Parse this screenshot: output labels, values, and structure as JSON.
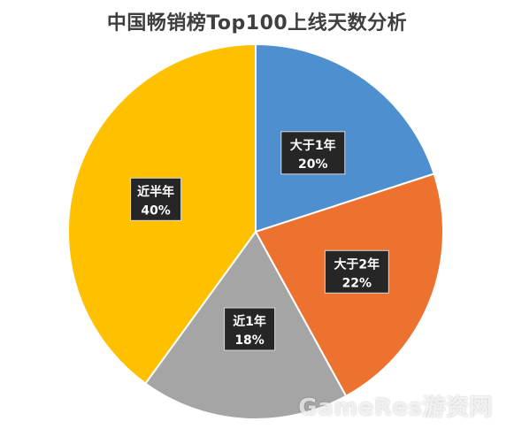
{
  "chart_data": {
    "type": "pie",
    "title": "中国畅销榜Top100上线天数分析",
    "start_angle_deg": 0,
    "direction": "clockwise",
    "slices": [
      {
        "label": "大于1年",
        "value": 20,
        "value_label": "20%",
        "color": "#4e8fd0"
      },
      {
        "label": "大于2年",
        "value": 22,
        "value_label": "22%",
        "color": "#ed7230"
      },
      {
        "label": "近1年",
        "value": 18,
        "value_label": "18%",
        "color": "#a5a5a5"
      },
      {
        "label": "近半年",
        "value": 40,
        "value_label": "40%",
        "color": "#ffc000"
      }
    ]
  },
  "watermark": "GameRes游资网"
}
